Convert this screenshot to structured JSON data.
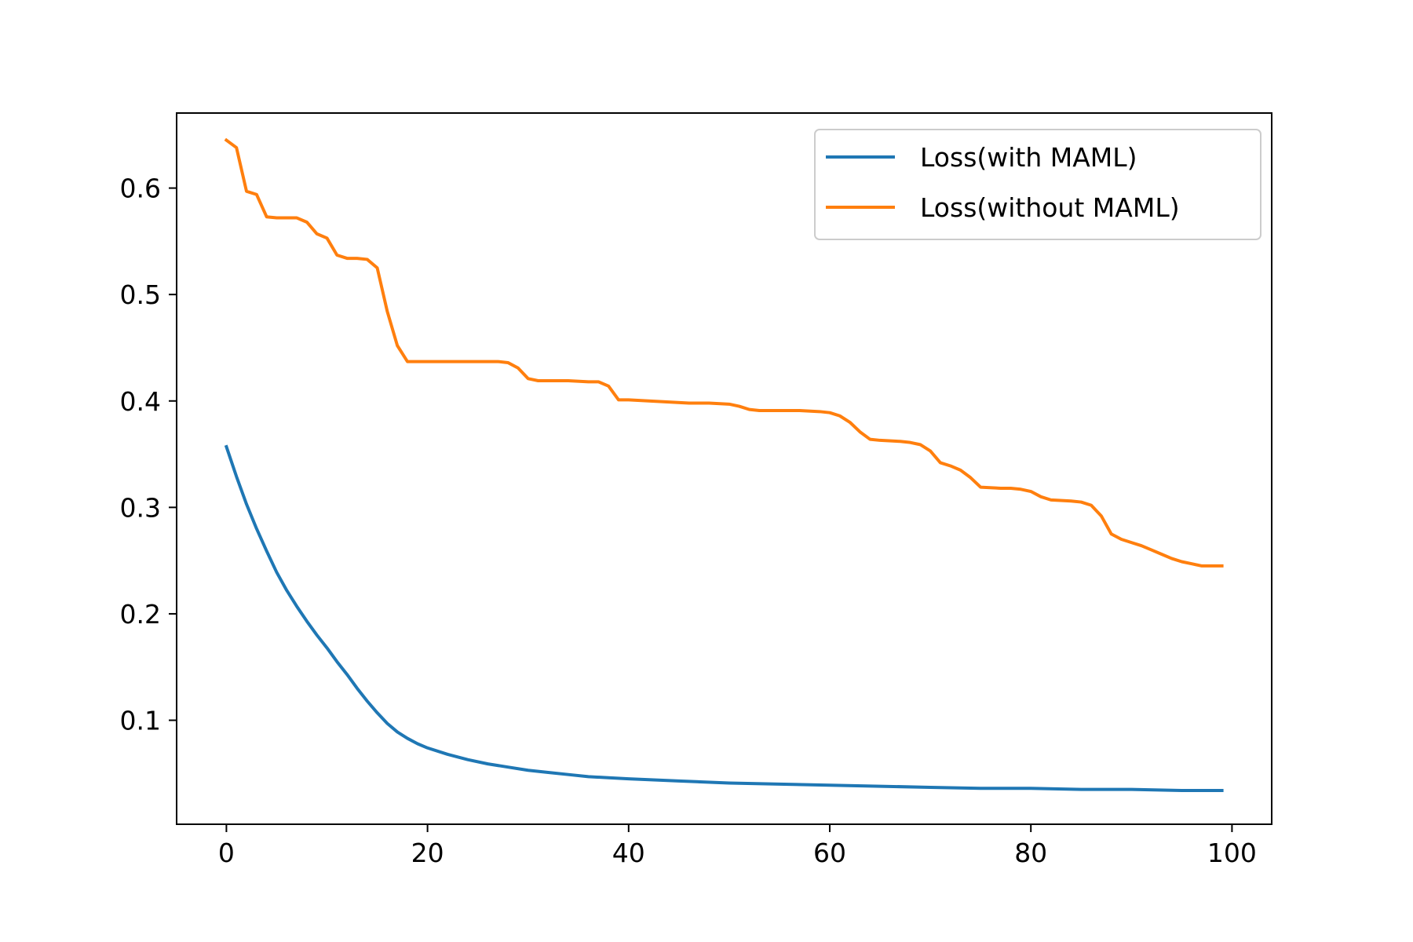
{
  "chart_data": {
    "type": "line",
    "title": "",
    "xlabel": "",
    "ylabel": "",
    "xlim": [
      -4.95,
      103.95
    ],
    "ylim": [
      0.0023,
      0.6705
    ],
    "x_ticks": [
      0,
      20,
      40,
      60,
      80,
      100
    ],
    "y_ticks": [
      0.1,
      0.2,
      0.3,
      0.4,
      0.5,
      0.6
    ],
    "x_tick_labels": [
      "0",
      "20",
      "40",
      "60",
      "80",
      "100"
    ],
    "y_tick_labels": [
      "0.1",
      "0.2",
      "0.3",
      "0.4",
      "0.5",
      "0.6"
    ],
    "grid": false,
    "legend_position": "top-right",
    "series": [
      {
        "name": "Loss(with MAML)",
        "color": "#1f77b4",
        "x": [
          0,
          1,
          2,
          3,
          4,
          5,
          6,
          7,
          8,
          9,
          10,
          11,
          12,
          13,
          14,
          15,
          16,
          17,
          18,
          19,
          20,
          22,
          24,
          26,
          28,
          30,
          32,
          34,
          36,
          38,
          40,
          45,
          50,
          55,
          60,
          65,
          70,
          75,
          80,
          85,
          90,
          95,
          99
        ],
        "y": [
          0.357,
          0.329,
          0.303,
          0.28,
          0.259,
          0.239,
          0.222,
          0.207,
          0.193,
          0.18,
          0.168,
          0.155,
          0.143,
          0.13,
          0.118,
          0.107,
          0.097,
          0.089,
          0.083,
          0.078,
          0.074,
          0.068,
          0.063,
          0.059,
          0.056,
          0.053,
          0.051,
          0.049,
          0.047,
          0.046,
          0.045,
          0.043,
          0.041,
          0.04,
          0.039,
          0.038,
          0.037,
          0.036,
          0.036,
          0.035,
          0.035,
          0.034,
          0.034
        ]
      },
      {
        "name": "Loss(without MAML)",
        "color": "#ff7f0e",
        "x": [
          0,
          1,
          2,
          3,
          4,
          5,
          6,
          7,
          8,
          9,
          10,
          11,
          12,
          13,
          14,
          15,
          16,
          17,
          18,
          19,
          20,
          22,
          24,
          26,
          27,
          28,
          29,
          30,
          31,
          32,
          34,
          36,
          37,
          38,
          39,
          40,
          42,
          44,
          46,
          48,
          50,
          51,
          52,
          53,
          55,
          57,
          59,
          60,
          61,
          62,
          63,
          64,
          65,
          67,
          68,
          69,
          70,
          71,
          72,
          73,
          74,
          75,
          77,
          78,
          79,
          80,
          81,
          82,
          84,
          85,
          86,
          87,
          88,
          89,
          90,
          91,
          92,
          93,
          94,
          95,
          96,
          97,
          98,
          99
        ],
        "y": [
          0.645,
          0.638,
          0.597,
          0.594,
          0.573,
          0.572,
          0.572,
          0.572,
          0.568,
          0.557,
          0.553,
          0.537,
          0.534,
          0.534,
          0.533,
          0.525,
          0.484,
          0.452,
          0.437,
          0.437,
          0.437,
          0.437,
          0.437,
          0.437,
          0.437,
          0.436,
          0.431,
          0.421,
          0.419,
          0.419,
          0.419,
          0.418,
          0.418,
          0.414,
          0.401,
          0.401,
          0.4,
          0.399,
          0.398,
          0.398,
          0.397,
          0.395,
          0.392,
          0.391,
          0.391,
          0.391,
          0.39,
          0.389,
          0.386,
          0.38,
          0.371,
          0.364,
          0.363,
          0.362,
          0.361,
          0.359,
          0.353,
          0.342,
          0.339,
          0.335,
          0.328,
          0.319,
          0.318,
          0.318,
          0.317,
          0.315,
          0.31,
          0.307,
          0.306,
          0.305,
          0.302,
          0.292,
          0.275,
          0.27,
          0.267,
          0.264,
          0.26,
          0.256,
          0.252,
          0.249,
          0.247,
          0.245,
          0.245,
          0.245
        ]
      }
    ]
  }
}
